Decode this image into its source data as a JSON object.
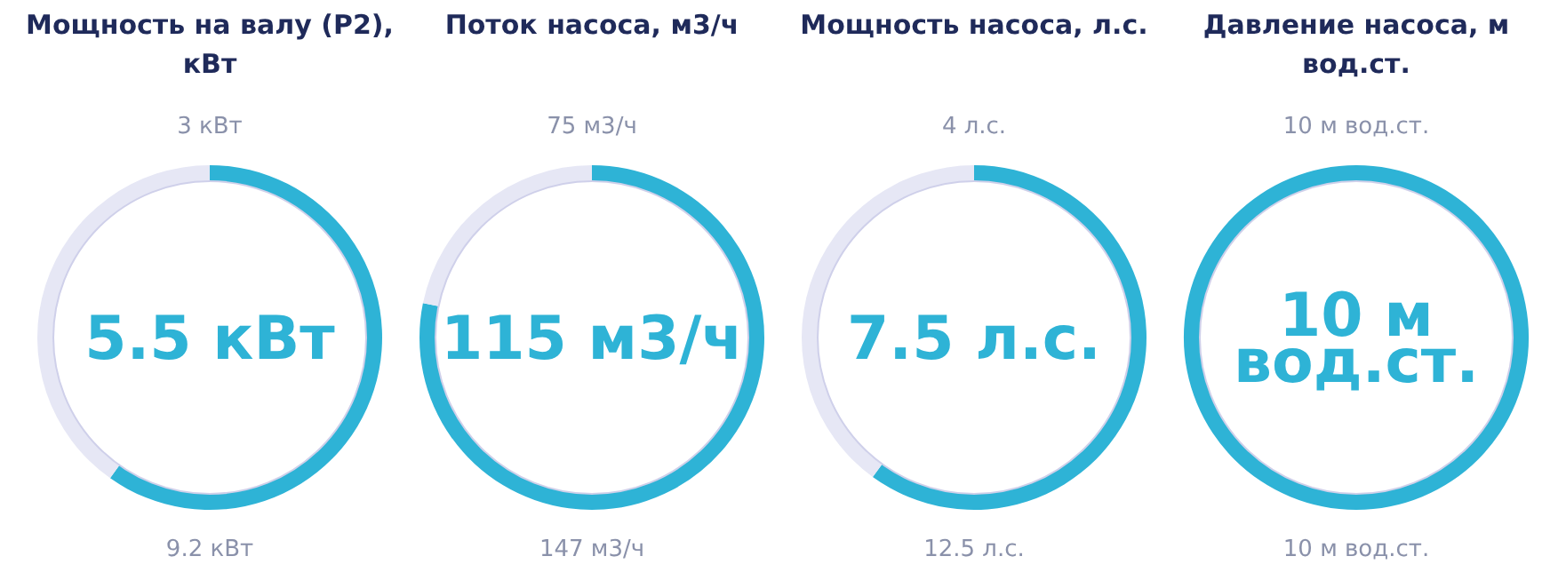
{
  "chart_data": [
    {
      "type": "donut",
      "title": "Мощность на валу (P2), кВт",
      "categories": [
        null,
        null
      ],
      "values": [
        59.8,
        40.2
      ],
      "colors": [
        "#2eb3d6",
        "#e6e7f5"
      ],
      "annotations": [
        "3 кВт",
        "5.5 кВт",
        "9.2 кВт"
      ]
    },
    {
      "type": "donut",
      "title": "Поток насоса, м3/ч",
      "categories": [
        null,
        null
      ],
      "values": [
        78.2,
        21.8
      ],
      "colors": [
        "#2eb3d6",
        "#e6e7f5"
      ],
      "annotations": [
        "75 м3/ч",
        "115 м3/ч",
        "147 м3/ч"
      ]
    },
    {
      "type": "donut",
      "title": "Мощность насоса, л.с.",
      "categories": [
        null,
        null
      ],
      "values": [
        60,
        40
      ],
      "colors": [
        "#2eb3d6",
        "#e6e7f5"
      ],
      "annotations": [
        "4 л.с.",
        "7.5 л.с.",
        "12.5 л.с."
      ]
    },
    {
      "type": "donut",
      "title": "Давление насоса, м вод.ст.",
      "categories": [
        null,
        null
      ],
      "values": [
        100,
        0
      ],
      "colors": [
        "#2eb3d6",
        "#e6e7f5"
      ],
      "annotations": [
        "10 м вод.ст.",
        "10 м вод.ст.",
        "10 м вод.ст."
      ]
    }
  ]
}
